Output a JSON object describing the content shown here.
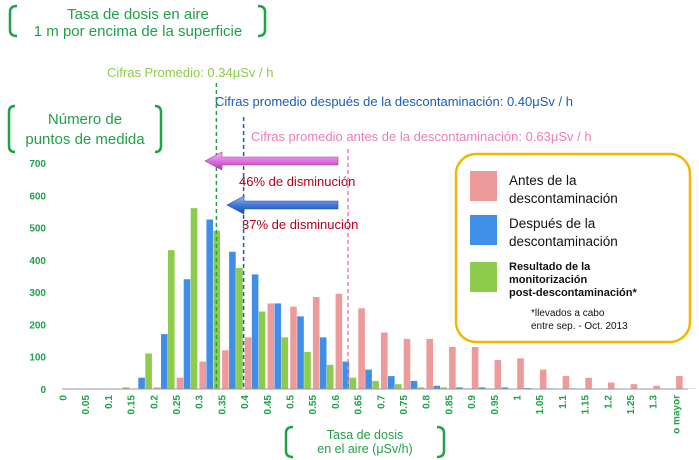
{
  "header": {
    "title_line1": "Tasa de dosis en aire",
    "title_line2": "1 m por encima de la superficie",
    "y_axis_title_line1": "Número de",
    "y_axis_title_line2": "puntos de medida",
    "x_axis_title_line1": "Tasa de dosis",
    "x_axis_title_line2": "en el aire (μSv/h)"
  },
  "annotations": {
    "avg_post": "Cifras Promedio: 0.34μSv / h",
    "avg_after": "Cifras promedio después de la descontaminación: 0.40μSv / h",
    "avg_before": "Cifras promedio antes de la descontaminación: 0.63μSv / h",
    "reduction_46": "46% de disminución",
    "reduction_37": "37% de disminución"
  },
  "legend": {
    "before": "Antes de la descontaminación",
    "before_l1": "Antes de la",
    "before_l2": "descontaminación",
    "after": "Después de la descontaminación",
    "after_l1": "Después de la",
    "after_l2": "descontaminación",
    "post": "Resultado de la monitorización post-descontaminación*",
    "post_l1": "Resultado de la",
    "post_l2": "monitorización",
    "post_l3": "post-descontaminación*",
    "note_l1": "*llevados a cabo",
    "note_l2": "entre sep. - Oct. 2013"
  },
  "colors": {
    "before": "#ec9a9a",
    "after": "#3f8ee8",
    "post": "#8ccc4a",
    "axis_text": "#21a04a",
    "avg_post_line": "#21a04a",
    "avg_after_line": "#1a5db3",
    "avg_before_line": "#f07ab8",
    "arrow_pink": "#e070e0",
    "arrow_blue": "#3f78d8",
    "reduction_text": "#b3001b",
    "legend_border": "#f0b800"
  },
  "chart_data": {
    "type": "bar",
    "title": "Tasa de dosis en aire 1 m por encima de la superficie",
    "xlabel": "Tasa de dosis en el aire (μSv/h)",
    "ylabel": "Número de puntos de medida",
    "ylim": [
      0,
      700
    ],
    "yticks": [
      0,
      100,
      200,
      300,
      400,
      500,
      600,
      700
    ],
    "grid": false,
    "legend_position": "right",
    "categories": [
      "0",
      "0.05",
      "0.1",
      "0.15",
      "0.2",
      "0.25",
      "0.3",
      "0.35",
      "0.4",
      "0.45",
      "0.5",
      "0.55",
      "0.6",
      "0.65",
      "0.7",
      "0.75",
      "0.8",
      "0.85",
      "0.9",
      "0.95",
      "1",
      "1.05",
      "1.1",
      "1.15",
      "1.2",
      "1.25",
      "1.3",
      "o mayor"
    ],
    "series": [
      {
        "name": "Antes de la descontaminación",
        "key": "before",
        "values": [
          0,
          0,
          0,
          0,
          5,
          35,
          85,
          120,
          160,
          265,
          255,
          285,
          295,
          250,
          175,
          155,
          155,
          130,
          130,
          90,
          95,
          60,
          40,
          35,
          20,
          15,
          10,
          40
        ]
      },
      {
        "name": "Después de la descontaminación",
        "key": "after",
        "values": [
          0,
          0,
          0,
          35,
          170,
          340,
          525,
          425,
          355,
          265,
          225,
          160,
          85,
          60,
          40,
          25,
          10,
          5,
          5,
          5,
          3,
          2,
          2,
          1,
          1,
          1,
          1,
          1
        ]
      },
      {
        "name": "Resultado de la monitorización post-descontaminación*",
        "key": "post",
        "values": [
          0,
          0,
          5,
          110,
          430,
          560,
          490,
          375,
          240,
          160,
          115,
          75,
          35,
          25,
          15,
          5,
          5,
          2,
          2,
          1,
          1,
          1,
          1,
          1,
          1,
          1,
          1,
          1
        ]
      }
    ],
    "averages": {
      "post": 0.34,
      "after": 0.4,
      "before": 0.63
    },
    "reductions_percent": [
      46,
      37
    ]
  }
}
